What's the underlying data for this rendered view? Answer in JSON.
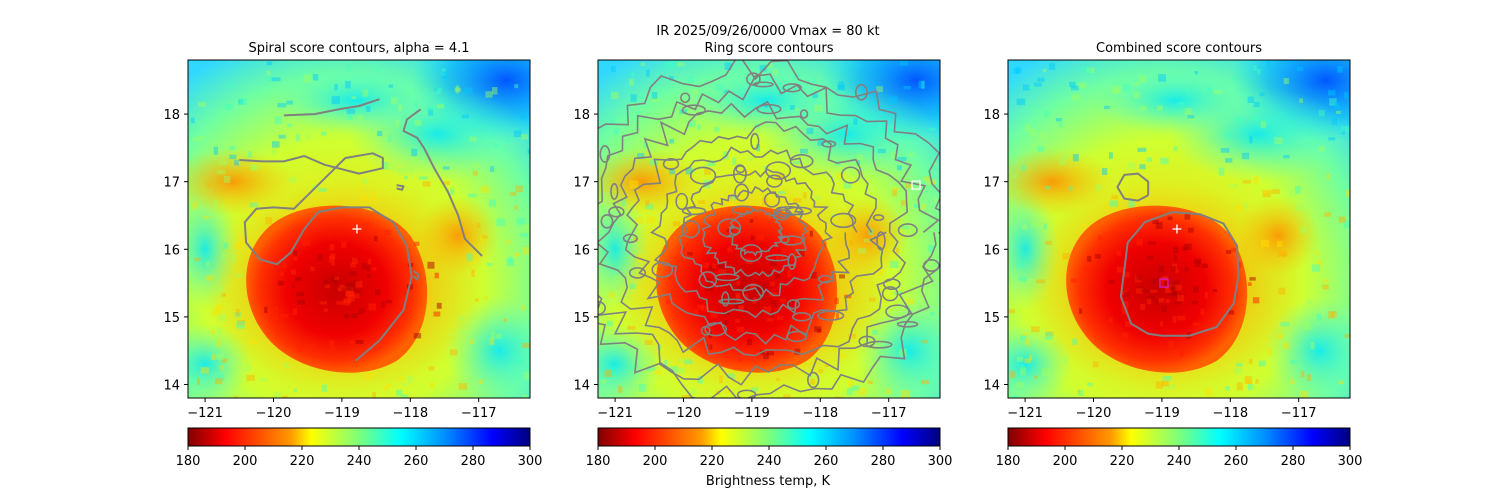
{
  "figure": {
    "suptitle_line1": "IR  2025/09/26/0000    Vmax = 80 kt",
    "colorbar_label": "Brightness temp, K"
  },
  "chart_data": [
    {
      "type": "heatmap",
      "title": "Spiral score contours, alpha =  4.1",
      "x_ticks": [
        -121,
        -120,
        -119,
        -118,
        -117
      ],
      "y_ticks": [
        14,
        15,
        16,
        17,
        18
      ],
      "xlim": [
        -121.25,
        -116.25
      ],
      "ylim": [
        13.8,
        18.8
      ],
      "colorbar": {
        "ticks": [
          180,
          200,
          220,
          240,
          260,
          280,
          300
        ],
        "range": [
          180,
          300
        ],
        "colormap": "jet_r"
      },
      "markers": [
        {
          "kind": "plus",
          "lon": -118.78,
          "lat": 16.3,
          "color": "#ffffff"
        }
      ],
      "contours": [
        {
          "color": "#808080",
          "points": [
            [
              -118.8,
              14.35
            ],
            [
              -118.45,
              14.65
            ],
            [
              -118.1,
              15.1
            ],
            [
              -117.98,
              15.6
            ],
            [
              -118.05,
              16.05
            ],
            [
              -118.25,
              16.4
            ],
            [
              -118.6,
              16.62
            ],
            [
              -119.0,
              16.62
            ],
            [
              -119.35,
              16.55
            ],
            [
              -119.55,
              16.3
            ],
            [
              -119.75,
              15.95
            ],
            [
              -119.95,
              15.78
            ],
            [
              -120.2,
              15.85
            ],
            [
              -120.4,
              16.1
            ],
            [
              -120.42,
              16.4
            ],
            [
              -120.25,
              16.6
            ],
            [
              -120.0,
              16.62
            ],
            [
              -119.7,
              16.6
            ],
            [
              -119.2,
              17.1
            ],
            [
              -118.95,
              17.35
            ],
            [
              -118.55,
              17.42
            ],
            [
              -118.4,
              17.35
            ],
            [
              -118.4,
              17.2
            ],
            [
              -118.75,
              17.12
            ],
            [
              -119.25,
              17.25
            ],
            [
              -119.55,
              17.38
            ],
            [
              -119.85,
              17.3
            ],
            [
              -120.15,
              17.3
            ],
            [
              -120.5,
              17.32
            ]
          ]
        },
        {
          "color": "#808080",
          "points": [
            [
              -119.85,
              17.98
            ],
            [
              -119.4,
              18.0
            ],
            [
              -119.0,
              18.08
            ],
            [
              -118.75,
              18.12
            ],
            [
              -118.45,
              18.22
            ]
          ]
        },
        {
          "color": "#808080",
          "points": [
            [
              -117.85,
              18.07
            ],
            [
              -118.05,
              17.92
            ],
            [
              -118.1,
              17.75
            ],
            [
              -117.9,
              17.65
            ],
            [
              -117.8,
              17.5
            ],
            [
              -117.65,
              17.2
            ],
            [
              -117.45,
              16.85
            ],
            [
              -117.3,
              16.5
            ],
            [
              -117.2,
              16.15
            ],
            [
              -116.95,
              15.9
            ]
          ]
        },
        {
          "color": "#808080",
          "points": [
            [
              -117.95,
              15.68
            ],
            [
              -117.88,
              15.62
            ],
            [
              -117.9,
              15.55
            ],
            [
              -117.95,
              15.6
            ]
          ]
        },
        {
          "color": "#808080",
          "points": [
            [
              -118.2,
              16.95
            ],
            [
              -118.1,
              16.93
            ],
            [
              -118.12,
              16.88
            ],
            [
              -118.2,
              16.9
            ]
          ]
        }
      ]
    },
    {
      "type": "heatmap",
      "title": "Ring score contours",
      "x_ticks": [
        -121,
        -120,
        -119,
        -118,
        -117
      ],
      "y_ticks": [
        14,
        15,
        16,
        17,
        18
      ],
      "xlim": [
        -121.25,
        -116.25
      ],
      "ylim": [
        13.8,
        18.8
      ],
      "colorbar": {
        "ticks": [
          180,
          200,
          220,
          240,
          260,
          280,
          300
        ],
        "range": [
          180,
          300
        ],
        "colormap": "jet_r"
      },
      "markers": [
        {
          "kind": "square",
          "lon": -116.6,
          "lat": 16.95,
          "color": "#ffffff"
        }
      ],
      "contours": []
    },
    {
      "type": "heatmap",
      "title": "Combined score contours",
      "x_ticks": [
        -121,
        -120,
        -119,
        -118,
        -117
      ],
      "y_ticks": [
        14,
        15,
        16,
        17,
        18
      ],
      "xlim": [
        -121.25,
        -116.25
      ],
      "ylim": [
        13.8,
        18.8
      ],
      "colorbar": {
        "ticks": [
          180,
          200,
          220,
          240,
          260,
          280,
          300
        ],
        "range": [
          180,
          300
        ],
        "colormap": "jet_r"
      },
      "markers": [
        {
          "kind": "plus",
          "lon": -118.78,
          "lat": 16.3,
          "color": "#ffffff"
        },
        {
          "kind": "square",
          "lon": -118.97,
          "lat": 15.5,
          "color": "#d020d0"
        }
      ],
      "contours": [
        {
          "color": "#808080",
          "points": [
            [
              -119.0,
              14.72
            ],
            [
              -118.6,
              14.72
            ],
            [
              -118.2,
              14.85
            ],
            [
              -117.95,
              15.2
            ],
            [
              -117.88,
              15.6
            ],
            [
              -117.9,
              16.05
            ],
            [
              -118.1,
              16.38
            ],
            [
              -118.45,
              16.52
            ],
            [
              -118.85,
              16.55
            ],
            [
              -119.25,
              16.4
            ],
            [
              -119.5,
              16.1
            ],
            [
              -119.55,
              15.7
            ],
            [
              -119.6,
              15.3
            ],
            [
              -119.45,
              14.9
            ],
            [
              -119.2,
              14.75
            ],
            [
              -119.0,
              14.72
            ]
          ]
        },
        {
          "color": "#808080",
          "points": [
            [
              -119.2,
              16.8
            ],
            [
              -119.35,
              16.72
            ],
            [
              -119.55,
              16.75
            ],
            [
              -119.65,
              16.92
            ],
            [
              -119.55,
              17.1
            ],
            [
              -119.35,
              17.12
            ],
            [
              -119.2,
              17.0
            ],
            [
              -119.2,
              16.8
            ]
          ]
        }
      ]
    }
  ]
}
